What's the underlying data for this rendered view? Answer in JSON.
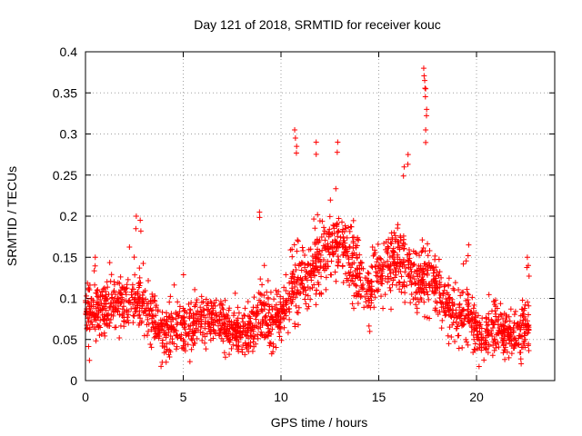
{
  "chart_data": {
    "type": "scatter",
    "title": "Day 121 of 2018, SRMTID for receiver kouc",
    "xlabel": "GPS time / hours",
    "ylabel": "SRMTID / TECUs",
    "xlim": [
      0,
      24
    ],
    "ylim": [
      0,
      0.4
    ],
    "xticks": [
      0,
      5,
      10,
      15,
      20
    ],
    "yticks": [
      0,
      0.05,
      0.1,
      0.15,
      0.2,
      0.25,
      0.3,
      0.35,
      0.4
    ],
    "xtick_labels": [
      "0",
      "5",
      "10",
      "15",
      "20"
    ],
    "ytick_labels": [
      "0",
      "0.05",
      "0.1",
      "0.15",
      "0.2",
      "0.25",
      "0.3",
      "0.35",
      "0.4"
    ],
    "grid": true,
    "marker": "+",
    "color": "#ff0000",
    "series": [
      {
        "name": "SRMTID",
        "x_range": [
          0,
          22.7
        ],
        "trend": [
          [
            0.0,
            0.085
          ],
          [
            1.0,
            0.085
          ],
          [
            2.0,
            0.09
          ],
          [
            2.7,
            0.1
          ],
          [
            3.5,
            0.075
          ],
          [
            4.0,
            0.06
          ],
          [
            5.0,
            0.065
          ],
          [
            6.0,
            0.07
          ],
          [
            7.0,
            0.065
          ],
          [
            8.0,
            0.055
          ],
          [
            8.5,
            0.06
          ],
          [
            9.0,
            0.09
          ],
          [
            9.5,
            0.07
          ],
          [
            10.0,
            0.08
          ],
          [
            10.5,
            0.11
          ],
          [
            11.0,
            0.12
          ],
          [
            11.5,
            0.13
          ],
          [
            12.0,
            0.15
          ],
          [
            12.5,
            0.16
          ],
          [
            13.0,
            0.165
          ],
          [
            13.5,
            0.15
          ],
          [
            14.0,
            0.12
          ],
          [
            14.5,
            0.11
          ],
          [
            15.0,
            0.13
          ],
          [
            15.5,
            0.14
          ],
          [
            16.0,
            0.15
          ],
          [
            16.5,
            0.14
          ],
          [
            17.0,
            0.12
          ],
          [
            17.5,
            0.13
          ],
          [
            18.0,
            0.11
          ],
          [
            18.5,
            0.09
          ],
          [
            19.0,
            0.08
          ],
          [
            19.5,
            0.08
          ],
          [
            20.0,
            0.06
          ],
          [
            20.5,
            0.055
          ],
          [
            21.0,
            0.06
          ],
          [
            21.5,
            0.055
          ],
          [
            22.0,
            0.055
          ],
          [
            22.7,
            0.06
          ]
        ],
        "spread": 0.025,
        "spikes": [
          [
            0.5,
            0.15
          ],
          [
            2.6,
            0.2
          ],
          [
            2.8,
            0.195
          ],
          [
            8.9,
            0.205
          ],
          [
            10.7,
            0.305
          ],
          [
            10.8,
            0.285
          ],
          [
            11.8,
            0.29
          ],
          [
            12.9,
            0.29
          ],
          [
            16.3,
            0.26
          ],
          [
            16.5,
            0.275
          ],
          [
            17.3,
            0.38
          ],
          [
            17.35,
            0.365
          ],
          [
            17.4,
            0.355
          ],
          [
            17.45,
            0.33
          ],
          [
            17.4,
            0.305
          ],
          [
            19.6,
            0.165
          ],
          [
            22.6,
            0.15
          ],
          [
            22.65,
            0.14
          ]
        ],
        "point_count": 2200
      }
    ]
  }
}
